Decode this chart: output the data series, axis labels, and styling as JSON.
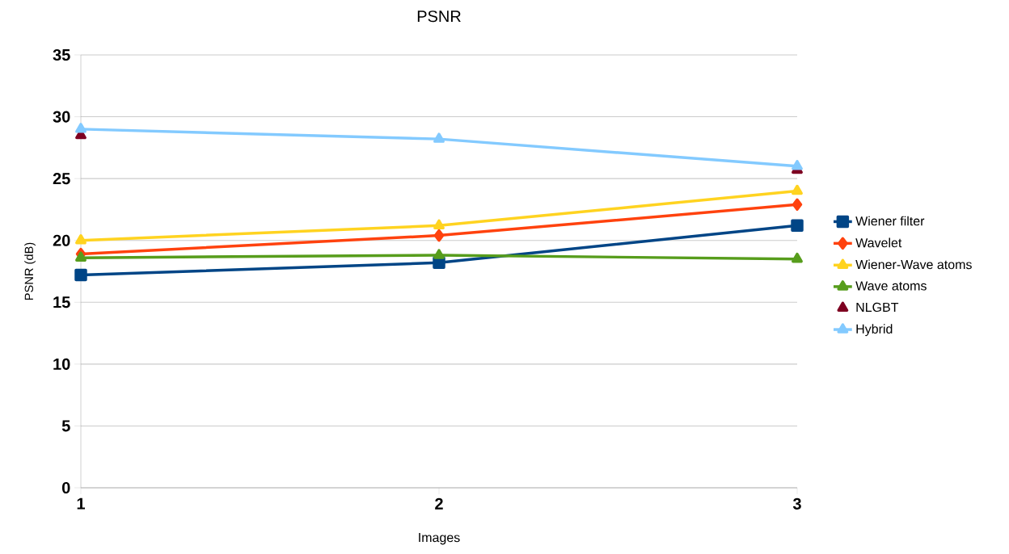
{
  "chart_data": {
    "type": "line",
    "title": "PSNR",
    "xlabel": "Images",
    "ylabel": "PSNR (dB)",
    "x": [
      1,
      2,
      3
    ],
    "xlim": [
      1,
      3
    ],
    "xticks": [
      1,
      2,
      3
    ],
    "ylim": [
      0,
      35
    ],
    "yticks": [
      0,
      5,
      10,
      15,
      20,
      25,
      30,
      35
    ],
    "grid": "y",
    "legend": "right",
    "series": [
      {
        "name": "Wiener filter",
        "color": "#004586",
        "marker": "square",
        "values": [
          17.2,
          18.2,
          21.2
        ]
      },
      {
        "name": "Wavelet",
        "color": "#ff420e",
        "marker": "diamond",
        "values": [
          18.9,
          20.4,
          22.9
        ]
      },
      {
        "name": "Wiener-Wave atoms",
        "color": "#ffd320",
        "marker": "triangle",
        "values": [
          20.0,
          21.2,
          24.0
        ]
      },
      {
        "name": "Wave atoms",
        "color": "#579d1c",
        "marker": "triangle",
        "values": [
          18.6,
          18.8,
          18.5
        ]
      },
      {
        "name": "NLGBT",
        "type": "scatter",
        "color": "#7e0021",
        "marker": "triangle",
        "values": [
          28.5,
          null,
          25.7
        ]
      },
      {
        "name": "Hybrid",
        "color": "#83caff",
        "marker": "triangle",
        "values": [
          29.0,
          28.2,
          26.0
        ]
      }
    ]
  }
}
